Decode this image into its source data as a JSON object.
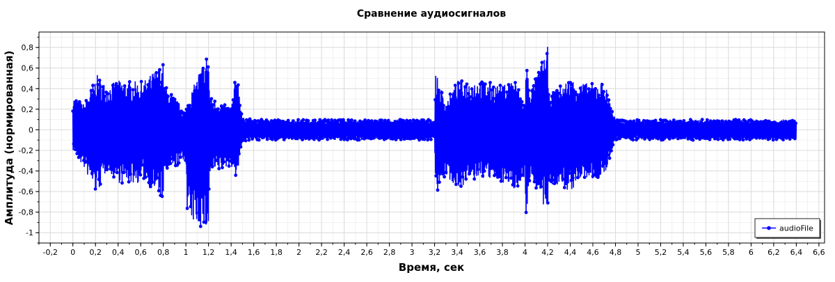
{
  "chart_data": {
    "type": "line",
    "title": "Сравнение аудиосигналов",
    "xlabel": "Время, сек",
    "ylabel": "Амплитуда (нормированная)",
    "xlim": [
      -0.3,
      6.65
    ],
    "ylim": [
      -1.1,
      0.95
    ],
    "grid": true,
    "legend_position": "bottom-right",
    "x_ticks": [
      {
        "value": -0.2,
        "label": "-0,2"
      },
      {
        "value": 0,
        "label": "0"
      },
      {
        "value": 0.2,
        "label": "0,2"
      },
      {
        "value": 0.4,
        "label": "0,4"
      },
      {
        "value": 0.6,
        "label": "0,6"
      },
      {
        "value": 0.8,
        "label": "0,8"
      },
      {
        "value": 1,
        "label": "1"
      },
      {
        "value": 1.2,
        "label": "1,2"
      },
      {
        "value": 1.4,
        "label": "1,4"
      },
      {
        "value": 1.6,
        "label": "1,6"
      },
      {
        "value": 1.8,
        "label": "1,8"
      },
      {
        "value": 2,
        "label": "2"
      },
      {
        "value": 2.2,
        "label": "2,2"
      },
      {
        "value": 2.4,
        "label": "2,4"
      },
      {
        "value": 2.6,
        "label": "2,6"
      },
      {
        "value": 2.8,
        "label": "2,8"
      },
      {
        "value": 3,
        "label": "3"
      },
      {
        "value": 3.2,
        "label": "3,2"
      },
      {
        "value": 3.4,
        "label": "3,4"
      },
      {
        "value": 3.6,
        "label": "3,6"
      },
      {
        "value": 3.8,
        "label": "3,8"
      },
      {
        "value": 4,
        "label": "4"
      },
      {
        "value": 4.2,
        "label": "4,2"
      },
      {
        "value": 4.4,
        "label": "4,4"
      },
      {
        "value": 4.6,
        "label": "4,6"
      },
      {
        "value": 4.8,
        "label": "4,8"
      },
      {
        "value": 5,
        "label": "5"
      },
      {
        "value": 5.2,
        "label": "5,2"
      },
      {
        "value": 5.4,
        "label": "5,4"
      },
      {
        "value": 5.6,
        "label": "5,6"
      },
      {
        "value": 5.8,
        "label": "5,8"
      },
      {
        "value": 6,
        "label": "6"
      },
      {
        "value": 6.2,
        "label": "6,2"
      },
      {
        "value": 6.4,
        "label": "6,4"
      },
      {
        "value": 6.6,
        "label": "6,6"
      }
    ],
    "y_ticks": [
      {
        "value": -1,
        "label": "-1"
      },
      {
        "value": -0.8,
        "label": "-0,8"
      },
      {
        "value": -0.6,
        "label": "-0,6"
      },
      {
        "value": -0.4,
        "label": "-0,4"
      },
      {
        "value": -0.2,
        "label": "-0,2"
      },
      {
        "value": 0,
        "label": "0"
      },
      {
        "value": 0.2,
        "label": "0,2"
      },
      {
        "value": 0.4,
        "label": "0,4"
      },
      {
        "value": 0.6,
        "label": "0,6"
      },
      {
        "value": 0.8,
        "label": "0,8"
      }
    ],
    "series": [
      {
        "name": "audioFile",
        "color": "#0000ff",
        "marker": "circle",
        "envelope_x": [
          0.0,
          0.1,
          0.2,
          0.21,
          0.3,
          0.4,
          0.43,
          0.6,
          0.62,
          0.8,
          0.81,
          1.0,
          1.01,
          1.2,
          1.21,
          1.4,
          1.45,
          1.5,
          1.6,
          3.2,
          3.21,
          3.3,
          3.4,
          3.6,
          3.8,
          3.9,
          4.0,
          4.01,
          4.05,
          4.2,
          4.21,
          4.4,
          4.5,
          4.6,
          4.7,
          4.8,
          6.0,
          6.4
        ],
        "envelope_max": [
          0.33,
          0.25,
          0.5,
          0.54,
          0.43,
          0.48,
          0.48,
          0.47,
          0.47,
          0.65,
          0.44,
          0.18,
          0.27,
          0.78,
          0.32,
          0.21,
          0.6,
          0.12,
          0.1,
          0.1,
          0.55,
          0.27,
          0.48,
          0.49,
          0.43,
          0.52,
          0.25,
          0.67,
          0.38,
          0.81,
          0.35,
          0.5,
          0.46,
          0.45,
          0.48,
          0.1,
          0.1,
          0.1
        ],
        "envelope_min": [
          -0.2,
          -0.38,
          -0.61,
          -0.64,
          -0.4,
          -0.51,
          -0.53,
          -0.52,
          -0.48,
          -0.69,
          -0.43,
          -0.3,
          -0.87,
          -1.0,
          -0.45,
          -0.35,
          -0.48,
          -0.12,
          -0.1,
          -0.1,
          -0.62,
          -0.45,
          -0.57,
          -0.47,
          -0.51,
          -0.58,
          -0.5,
          -0.84,
          -0.43,
          -0.88,
          -0.52,
          -0.61,
          -0.48,
          -0.49,
          -0.47,
          -0.1,
          -0.1,
          -0.1
        ]
      }
    ]
  }
}
